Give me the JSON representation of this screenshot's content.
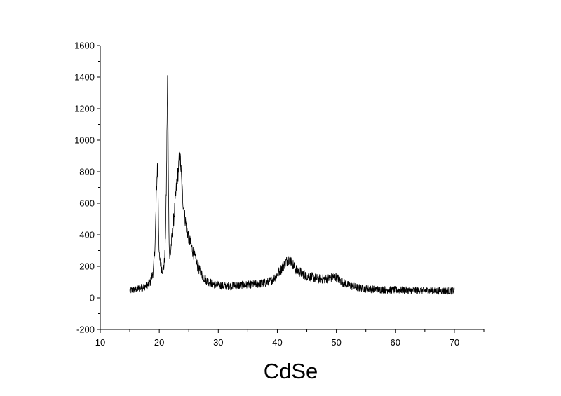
{
  "chart_data": {
    "type": "line",
    "title": "",
    "xlabel": "CdSe",
    "ylabel": "",
    "xlim": [
      10,
      75
    ],
    "ylim": [
      -200,
      1600
    ],
    "x_ticks": [
      10,
      20,
      30,
      40,
      50,
      60,
      70
    ],
    "y_ticks": [
      -200,
      0,
      200,
      400,
      600,
      800,
      1000,
      1200,
      1400,
      1600
    ],
    "grid": false,
    "legend": "none",
    "line_color": "#000000",
    "series": [
      {
        "x": [
          15.0,
          16.0,
          17.0,
          18.0,
          18.5,
          19.0,
          19.3,
          19.5,
          19.7,
          19.8,
          19.9,
          20.0,
          20.2,
          20.5,
          20.8,
          21.0,
          21.2,
          21.4,
          21.5,
          21.6,
          21.7,
          21.8,
          21.9,
          22.0,
          22.2,
          22.5,
          22.8,
          23.0,
          23.2,
          23.4,
          23.6,
          23.7,
          23.8,
          24.0,
          24.3,
          24.6,
          25.0,
          25.5,
          26.0,
          26.5,
          27.0,
          27.5,
          28.0,
          29.0,
          30.0,
          31.0,
          32.0,
          33.0,
          34.0,
          35.0,
          36.0,
          37.0,
          38.0,
          39.0,
          40.0,
          41.0,
          41.5,
          42.0,
          42.4,
          42.8,
          43.2,
          44.0,
          45.0,
          46.0,
          47.0,
          48.0,
          49.0,
          49.5,
          50.0,
          51.0,
          52.0,
          53.0,
          54.0,
          55.0,
          56.0,
          58.0,
          60.0,
          62.0,
          64.0,
          66.0,
          68.0,
          70.0
        ],
        "y": [
          45,
          55,
          65,
          80,
          100,
          170,
          350,
          650,
          860,
          700,
          420,
          260,
          210,
          180,
          200,
          300,
          700,
          1400,
          1000,
          550,
          300,
          240,
          280,
          330,
          400,
          520,
          650,
          750,
          800,
          880,
          860,
          800,
          720,
          620,
          520,
          450,
          380,
          320,
          260,
          200,
          160,
          130,
          110,
          90,
          80,
          75,
          75,
          78,
          80,
          82,
          85,
          90,
          95,
          110,
          150,
          200,
          230,
          250,
          235,
          200,
          180,
          160,
          140,
          130,
          120,
          120,
          125,
          135,
          130,
          100,
          80,
          70,
          62,
          58,
          55,
          52,
          50,
          48,
          47,
          46,
          45,
          45
        ]
      }
    ]
  }
}
